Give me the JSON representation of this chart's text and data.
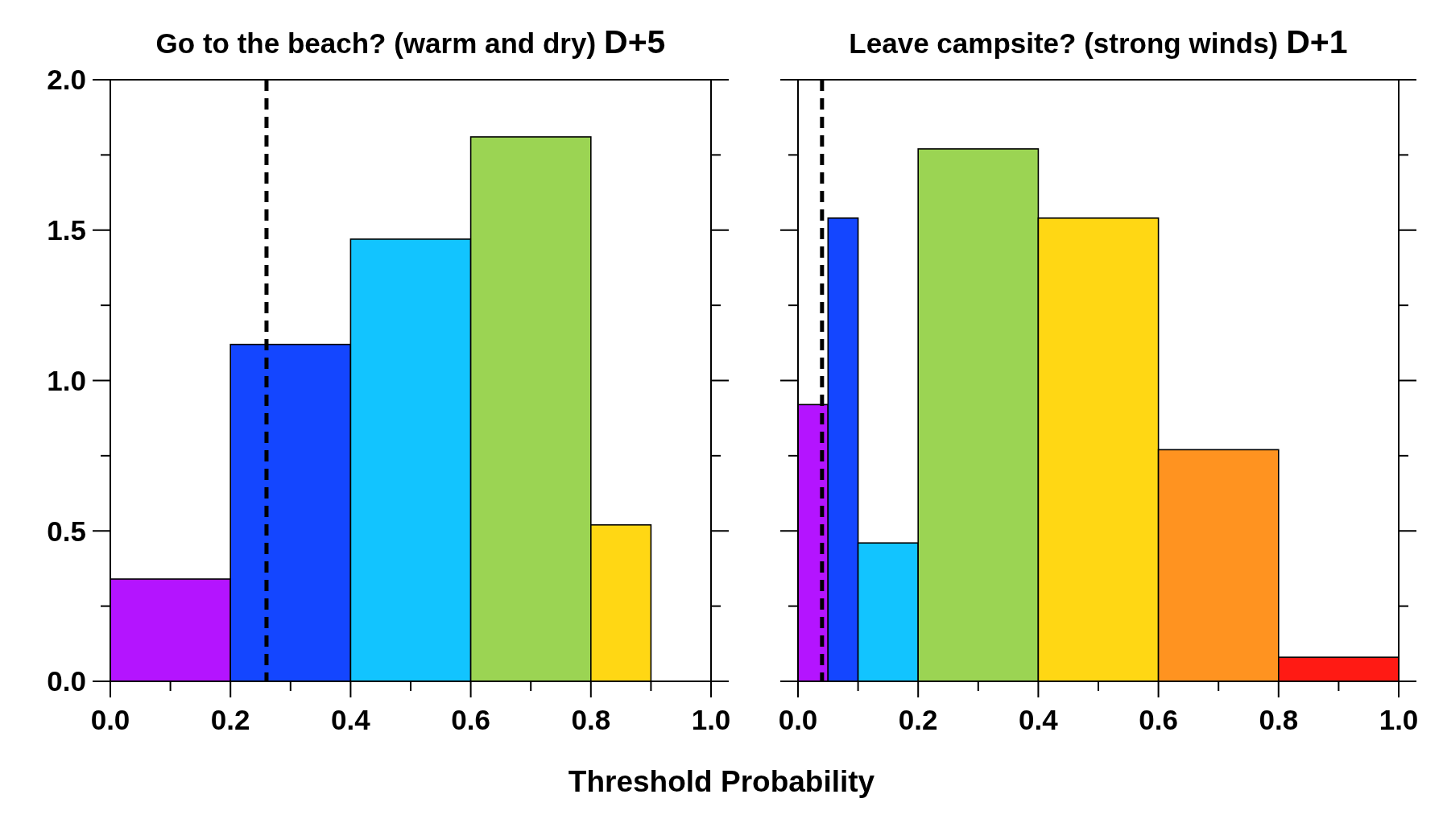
{
  "chart_data": [
    {
      "type": "histogram",
      "title": "Go to the beach? (warm and dry)",
      "subtitle": "D+5",
      "xlabel": "Threshold Probability",
      "bins": [
        0,
        0.2,
        0.4,
        0.6,
        0.8,
        0.9
      ],
      "values": [
        0.34,
        1.12,
        1.47,
        1.81,
        0.52
      ],
      "colors": [
        "#b414ff",
        "#1446ff",
        "#12c4ff",
        "#9bd453",
        "#ffd714"
      ],
      "xlim": [
        0,
        1
      ],
      "ylim": [
        0,
        2
      ],
      "xticks": [
        {
          "value": 0,
          "label": "0.0"
        },
        {
          "value": 0.1,
          "label": null
        },
        {
          "value": 0.2,
          "label": "0.2"
        },
        {
          "value": 0.3,
          "label": null
        },
        {
          "value": 0.4,
          "label": "0.4"
        },
        {
          "value": 0.5,
          "label": null
        },
        {
          "value": 0.6,
          "label": "0.6"
        },
        {
          "value": 0.7,
          "label": null
        },
        {
          "value": 0.8,
          "label": "0.8"
        },
        {
          "value": 0.9,
          "label": null
        },
        {
          "value": 1,
          "label": "1.0"
        }
      ],
      "yticks": [
        {
          "value": 0,
          "label": "0.0"
        },
        {
          "value": 0.25,
          "label": null
        },
        {
          "value": 0.5,
          "label": "0.5"
        },
        {
          "value": 0.75,
          "label": null
        },
        {
          "value": 1,
          "label": "1.0"
        },
        {
          "value": 1.25,
          "label": null
        },
        {
          "value": 1.5,
          "label": "1.5"
        },
        {
          "value": 1.75,
          "label": null
        },
        {
          "value": 2,
          "label": "2.0"
        }
      ],
      "ref_lines": [
        {
          "axis": "x",
          "value": 0.26,
          "color": "#000000",
          "line_style": "dashed"
        }
      ]
    },
    {
      "type": "histogram",
      "title": "Leave campsite? (strong winds)",
      "subtitle": "D+1",
      "bins": [
        0,
        0.05,
        0.1,
        0.2,
        0.4,
        0.6,
        0.8,
        1.0
      ],
      "values": [
        0.92,
        1.54,
        0.46,
        1.77,
        1.54,
        0.77,
        0.08
      ],
      "colors": [
        "#b414ff",
        "#1446ff",
        "#12c4ff",
        "#9bd453",
        "#ffd714",
        "#ff9320",
        "#ff1a14"
      ],
      "xlim": [
        0,
        1
      ],
      "ylim": [
        0,
        2
      ],
      "tick_labels": "x",
      "xticks": [
        {
          "value": 0,
          "label": "0.0"
        },
        {
          "value": 0.1,
          "label": null
        },
        {
          "value": 0.2,
          "label": "0.2"
        },
        {
          "value": 0.3,
          "label": null
        },
        {
          "value": 0.4,
          "label": "0.4"
        },
        {
          "value": 0.5,
          "label": null
        },
        {
          "value": 0.6,
          "label": "0.6"
        },
        {
          "value": 0.7,
          "label": null
        },
        {
          "value": 0.8,
          "label": "0.8"
        },
        {
          "value": 0.9,
          "label": null
        },
        {
          "value": 1,
          "label": "1.0"
        }
      ],
      "yticks": [
        {
          "value": 0,
          "label": null
        },
        {
          "value": 0.25,
          "label": null
        },
        {
          "value": 0.5,
          "label": null
        },
        {
          "value": 0.75,
          "label": null
        },
        {
          "value": 1,
          "label": null
        },
        {
          "value": 1.25,
          "label": null
        },
        {
          "value": 1.5,
          "label": null
        },
        {
          "value": 1.75,
          "label": null
        },
        {
          "value": 2,
          "label": null
        }
      ],
      "ref_lines": [
        {
          "axis": "x",
          "value": 0.04,
          "color": "#000000",
          "line_style": "dashed"
        }
      ]
    }
  ]
}
